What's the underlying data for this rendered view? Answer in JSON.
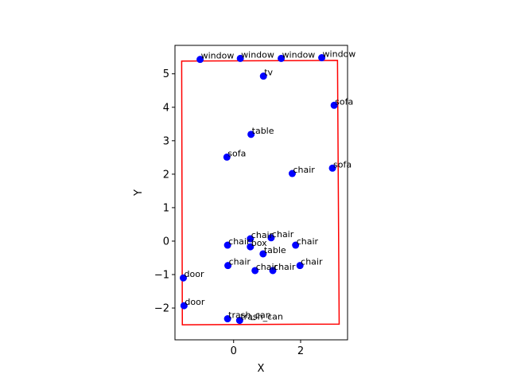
{
  "chart_data": {
    "type": "scatter",
    "title": "",
    "xlabel": "X",
    "ylabel": "Y",
    "xlim": [
      -1.75,
      3.4
    ],
    "ylim": [
      -2.95,
      5.85
    ],
    "xticks": [
      0,
      2
    ],
    "yticks": [
      -2,
      -1,
      0,
      1,
      2,
      3,
      4,
      5
    ],
    "tick_labels": {
      "x": [
        "0",
        "2"
      ],
      "y": [
        "−2",
        "−1",
        "0",
        "1",
        "2",
        "3",
        "4",
        "5"
      ]
    },
    "grid": false,
    "point_color": "#0000ff",
    "boundary_color": "#ff0000",
    "boundary": [
      [
        -1.55,
        5.38
      ],
      [
        3.1,
        5.4
      ],
      [
        3.15,
        -2.48
      ],
      [
        -1.53,
        -2.5
      ]
    ],
    "points": [
      {
        "label": "window",
        "x": -1.0,
        "y": 5.43
      },
      {
        "label": "window",
        "x": 0.2,
        "y": 5.46
      },
      {
        "label": "window",
        "x": 1.42,
        "y": 5.46
      },
      {
        "label": "window",
        "x": 2.63,
        "y": 5.48
      },
      {
        "label": "tv",
        "x": 0.89,
        "y": 4.93
      },
      {
        "label": "sofa",
        "x": 3.0,
        "y": 4.06
      },
      {
        "label": "table",
        "x": 0.52,
        "y": 3.19
      },
      {
        "label": "sofa",
        "x": -0.2,
        "y": 2.51
      },
      {
        "label": "chair",
        "x": 1.75,
        "y": 2.02
      },
      {
        "label": "sofa",
        "x": 2.95,
        "y": 2.18
      },
      {
        "label": "chair",
        "x": 0.5,
        "y": 0.07
      },
      {
        "label": "chair",
        "x": 1.12,
        "y": 0.1
      },
      {
        "label": "chair",
        "x": -0.18,
        "y": -0.12
      },
      {
        "label": "box",
        "x": 0.5,
        "y": -0.17
      },
      {
        "label": "chair",
        "x": 1.85,
        "y": -0.12
      },
      {
        "label": "table",
        "x": 0.88,
        "y": -0.38
      },
      {
        "label": "chair",
        "x": -0.17,
        "y": -0.73
      },
      {
        "label": "chair",
        "x": 0.64,
        "y": -0.88
      },
      {
        "label": "chair",
        "x": 1.17,
        "y": -0.88
      },
      {
        "label": "chair",
        "x": 1.98,
        "y": -0.73
      },
      {
        "label": "door",
        "x": -1.5,
        "y": -1.1
      },
      {
        "label": "door",
        "x": -1.48,
        "y": -1.93
      },
      {
        "label": "trash_can",
        "x": -0.18,
        "y": -2.32
      },
      {
        "label": "trash_can",
        "x": 0.18,
        "y": -2.37
      }
    ]
  }
}
